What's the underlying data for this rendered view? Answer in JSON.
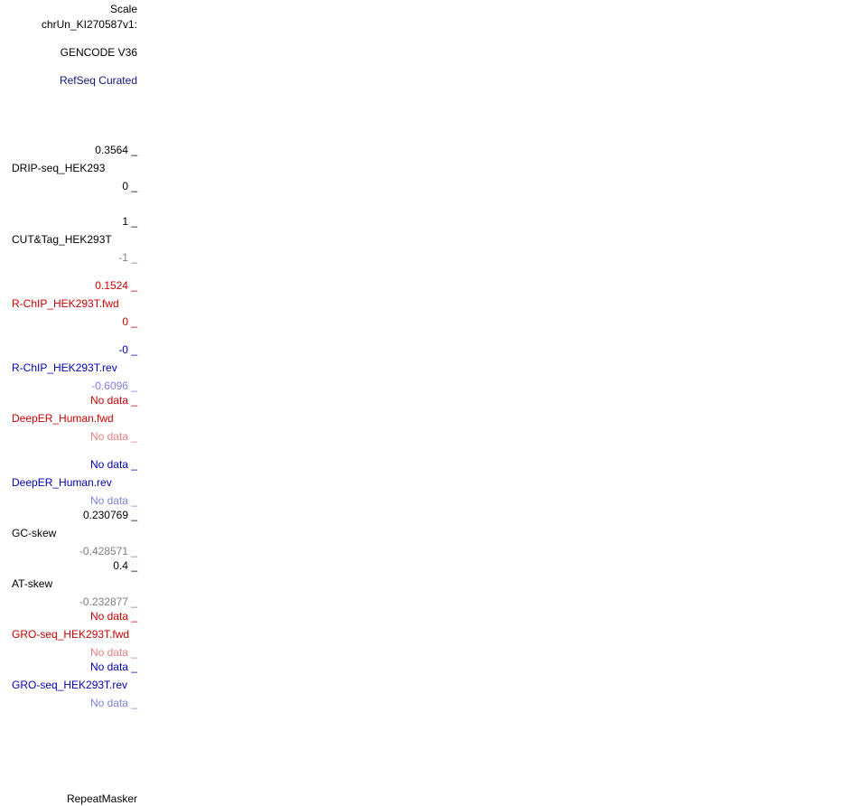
{
  "scale": {
    "label": "Scale",
    "chrom": "chrUn_KI270587v1:"
  },
  "tracks": [
    {
      "name": "GENCODE V36"
    },
    {
      "name": "RefSeq Curated"
    },
    {
      "name": "DRIP-seq_HEK293",
      "max": "0.3564 _",
      "min": "0 _"
    },
    {
      "name": "CUT&Tag_HEK293T",
      "max": "1 _",
      "min": "-1 _"
    },
    {
      "name": "R-ChIP_HEK293T.fwd",
      "max": "0.1524 _",
      "min": "0 _"
    },
    {
      "name": "R-ChIP_HEK293T.rev",
      "max": "-0 _",
      "min": "-0.6096 _"
    },
    {
      "name": "DeepER_Human.fwd",
      "max": "No data _",
      "min": "No data _"
    },
    {
      "name": "DeepER_Human.rev",
      "max": "No data _",
      "min": "No data _"
    },
    {
      "name": "GC-skew",
      "max": "0.230769 _",
      "min": "-0.428571 _"
    },
    {
      "name": "AT-skew",
      "max": "0.4 _",
      "min": "-0.232877 _"
    },
    {
      "name": "GRO-seq_HEK293T.fwd",
      "max": "No data _",
      "min": "No data _"
    },
    {
      "name": "GRO-seq_HEK293T.rev",
      "max": "No data _",
      "min": "No data _"
    },
    {
      "name": "RepeatMasker"
    }
  ]
}
